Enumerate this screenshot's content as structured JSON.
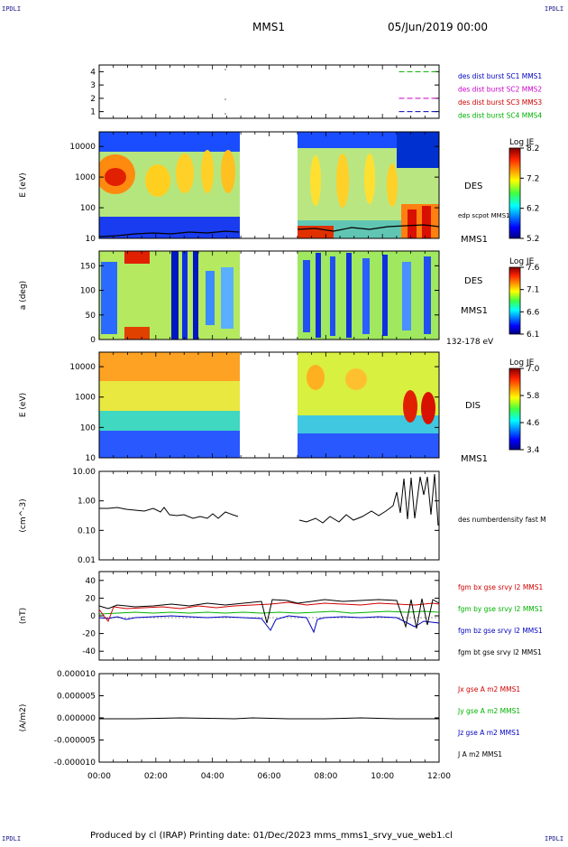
{
  "header": {
    "corner_left": "IPDLI",
    "corner_right": "IPDLI",
    "title": "MMS1",
    "date": "05/Jun/2019 00:00"
  },
  "footer": {
    "text": "Produced by cl (IRAP)   Printing date: 01/Dec/2023   mms_mms1_srvy_vue_web1.cl",
    "corner_left": "IPDLI",
    "corner_right": "IPDLI"
  },
  "colors": {
    "axis": "#000000",
    "red": "#d00000",
    "green": "#00b000",
    "blue": "#0000c0",
    "magenta": "#cc00cc",
    "black": "#000000"
  },
  "chart_data": [
    {
      "type": "line",
      "panel": "burst-availability",
      "x_range": [
        "00:00",
        "12:00"
      ],
      "ylim": [
        0.5,
        4.5
      ],
      "y_ticks": [
        "1",
        "2",
        "3",
        "4"
      ],
      "legend": [
        {
          "label": "des dist burst SC1 MMS1",
          "color": "#0000c0",
          "level": 1
        },
        {
          "label": "des dist burst SC2 MMS2",
          "color": "#cc00cc",
          "level": 2
        },
        {
          "label": "des dist burst SC3 MMS3",
          "color": "#d00000",
          "level": 3
        },
        {
          "label": "des dist burst SC4 MMS4",
          "color": "#00b000",
          "level": 4
        }
      ],
      "segments": [
        {
          "level": 4,
          "start": "10:35",
          "end": "12:00",
          "color": "#00b000"
        },
        {
          "level": 2,
          "start": "10:35",
          "end": "12:00",
          "color": "#cc00cc"
        },
        {
          "level": 1,
          "start": "10:35",
          "end": "12:00",
          "color": "#0000c0"
        }
      ]
    },
    {
      "type": "heatmap",
      "panel": "des-energy-spectrogram",
      "ylabel": "E (eV)",
      "yscale": "log",
      "ylim": [
        10,
        30000
      ],
      "y_ticks": [
        "10",
        "100",
        "1000",
        "10000"
      ],
      "data_gap": [
        "05:00",
        "07:00"
      ],
      "label": "DES",
      "spacecraft": "MMS1",
      "colorbar": {
        "title": "Log JE",
        "ticks": [
          "8.2",
          "7.2",
          "6.2",
          "5.2"
        ]
      },
      "overlay_label": "edp scpot MMS1"
    },
    {
      "type": "heatmap",
      "panel": "des-pitch-angle",
      "ylabel": "a (deg)",
      "ylim": [
        0,
        180
      ],
      "y_ticks": [
        "0",
        "50",
        "100",
        "150"
      ],
      "data_gap": [
        "05:00",
        "07:00"
      ],
      "label": "DES",
      "spacecraft": "MMS1",
      "energy_band": "132-178 eV",
      "colorbar": {
        "title": "Log JE",
        "ticks": [
          "7.6",
          "7.1",
          "6.6",
          "6.1"
        ]
      }
    },
    {
      "type": "heatmap",
      "panel": "dis-energy-spectrogram",
      "ylabel": "E (eV)",
      "yscale": "log",
      "ylim": [
        10,
        30000
      ],
      "y_ticks": [
        "10",
        "100",
        "1000",
        "10000"
      ],
      "data_gap": [
        "05:00",
        "07:00"
      ],
      "label": "DIS",
      "spacecraft": "MMS1",
      "colorbar": {
        "title": "Log JE",
        "ticks": [
          "7.0",
          "5.8",
          "4.6",
          "3.4"
        ]
      }
    },
    {
      "type": "line",
      "panel": "density",
      "ylabel": "(cm^-3)",
      "yscale": "log",
      "ylim": [
        0.01,
        10
      ],
      "y_ticks": [
        "0.01",
        "0.10",
        "1.00",
        "10.00"
      ],
      "series": [
        {
          "name": "des numberdensity fast M",
          "color": "#000000"
        }
      ]
    },
    {
      "type": "line",
      "panel": "magnetic-field",
      "ylabel": "(nT)",
      "ylim": [
        -50,
        50
      ],
      "y_ticks": [
        "40",
        "20",
        "0",
        "-20",
        "-40"
      ],
      "series": [
        {
          "name": "fgm bx gse srvy l2 MMS1",
          "color": "#d00000"
        },
        {
          "name": "fgm by gse srvy l2 MMS1",
          "color": "#00b000"
        },
        {
          "name": "fgm bz gse srvy l2 MMS1",
          "color": "#0000c0"
        },
        {
          "name": "fgm bt gse srvy l2 MMS1",
          "color": "#000000"
        }
      ]
    },
    {
      "type": "line",
      "panel": "current-density",
      "ylabel": "(A/m2)",
      "ylim": [
        -1e-05,
        1e-05
      ],
      "y_ticks": [
        "0.000010",
        "0.000005",
        "0.000000",
        "-0.000005",
        "-0.000010"
      ],
      "series": [
        {
          "name": "Jx gse A m2 MMS1",
          "color": "#d00000"
        },
        {
          "name": "Jy gse A m2 MMS1",
          "color": "#00b000"
        },
        {
          "name": "Jz gse A m2 MMS1",
          "color": "#0000c0"
        },
        {
          "name": "J A m2 MMS1",
          "color": "#000000"
        }
      ],
      "x_ticks": [
        "00:00",
        "02:00",
        "04:00",
        "06:00",
        "08:00",
        "10:00",
        "12:00"
      ]
    }
  ]
}
